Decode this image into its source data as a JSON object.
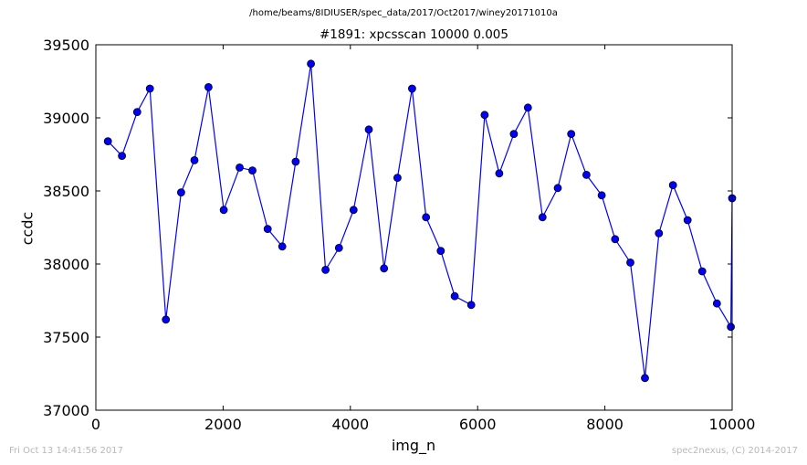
{
  "suptitle": "/home/beams/8IDIUSER/spec_data/2017/Oct2017/winey20171010a",
  "footer": {
    "timestamp": "Fri Oct 13 14:41:56 2017",
    "credit": "spec2nexus, (C) 2014-2017"
  },
  "chart_data": {
    "type": "line",
    "title": "#1891: xpcsscan 10000 0.005",
    "xlabel": "img_n",
    "ylabel": "ccdc",
    "xlim": [
      0,
      10000
    ],
    "ylim": [
      37000,
      39500
    ],
    "xticks": [
      0,
      2000,
      4000,
      6000,
      8000,
      10000
    ],
    "xtick_labels": [
      "0",
      "2000",
      "4000",
      "6000",
      "8000",
      "10000"
    ],
    "yticks": [
      37000,
      37500,
      38000,
      38500,
      39000,
      39500
    ],
    "ytick_labels": [
      "37000",
      "37500",
      "38000",
      "38500",
      "39000",
      "39500"
    ],
    "grid": false,
    "marker": "circle",
    "colors": {
      "line": "#0000ff",
      "marker_fill": "#0000ff",
      "marker_edge": "#000000"
    },
    "x": [
      190,
      410,
      650,
      850,
      1100,
      1340,
      1550,
      1770,
      2010,
      2260,
      2460,
      2700,
      2930,
      3140,
      3380,
      3610,
      3820,
      4050,
      4290,
      4530,
      4740,
      4970,
      5190,
      5420,
      5640,
      5900,
      6110,
      6340,
      6570,
      6790,
      7020,
      7260,
      7470,
      7710,
      7950,
      8160,
      8400,
      8630,
      8850,
      9070,
      9300,
      9530,
      9760,
      9980,
      10000
    ],
    "y": [
      38840,
      38740,
      39040,
      39200,
      37620,
      38490,
      38710,
      39210,
      38370,
      38660,
      38640,
      38240,
      38120,
      38700,
      39370,
      37960,
      38110,
      38370,
      38920,
      37970,
      38590,
      39200,
      38320,
      38090,
      37780,
      37720,
      39020,
      38620,
      38890,
      39070,
      38320,
      38520,
      38890,
      38610,
      38470,
      38170,
      38010,
      37220,
      38210,
      38540,
      38300,
      37950,
      37730,
      37570,
      38450
    ]
  }
}
